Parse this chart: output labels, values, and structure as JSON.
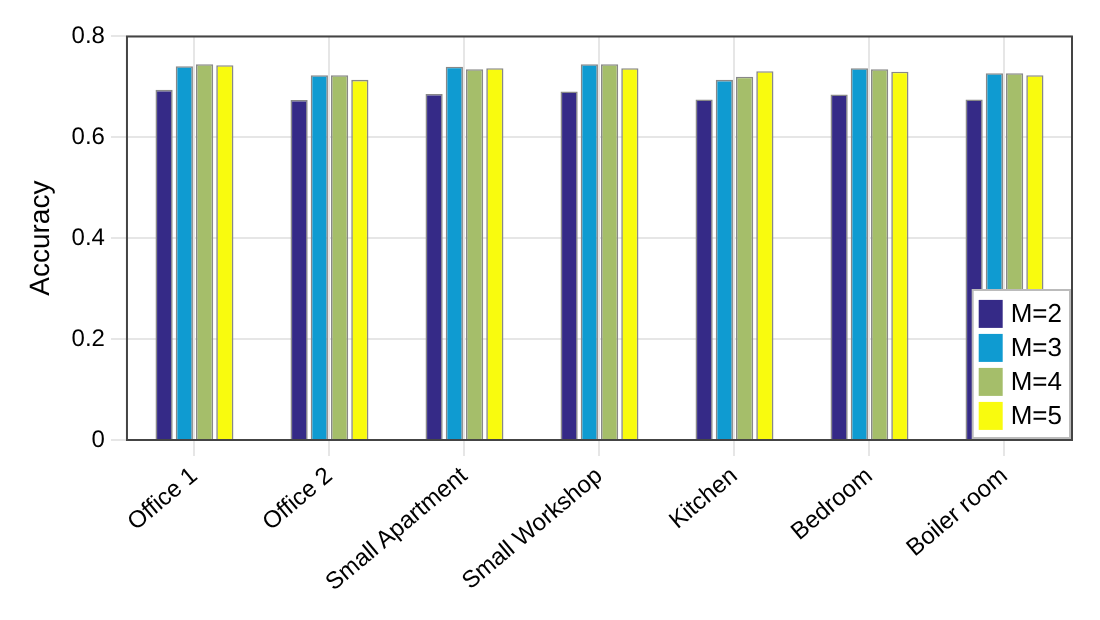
{
  "chart_data": {
    "type": "bar",
    "ylabel": "Accuracy",
    "categories": [
      "Office 1",
      "Office 2",
      "Small Apartment",
      "Small Workshop",
      "Kitchen",
      "Bedroom",
      "Boiler room"
    ],
    "series": [
      {
        "name": "M=2",
        "color": "#352a87",
        "values": [
          0.694,
          0.674,
          0.686,
          0.691,
          0.675,
          0.685,
          0.675
        ]
      },
      {
        "name": "M=3",
        "color": "#0f9bd1",
        "values": [
          0.741,
          0.723,
          0.74,
          0.745,
          0.714,
          0.737,
          0.727
        ]
      },
      {
        "name": "M=4",
        "color": "#a5be6a",
        "values": [
          0.745,
          0.723,
          0.735,
          0.745,
          0.72,
          0.735,
          0.727
        ]
      },
      {
        "name": "M=5",
        "color": "#f9fb0e",
        "values": [
          0.743,
          0.714,
          0.737,
          0.737,
          0.731,
          0.73,
          0.723
        ]
      }
    ],
    "ylim": [
      0,
      0.8
    ],
    "yticks": [
      0,
      0.2,
      0.4,
      0.6,
      0.8
    ],
    "grid": true,
    "legend": "bottom right"
  }
}
